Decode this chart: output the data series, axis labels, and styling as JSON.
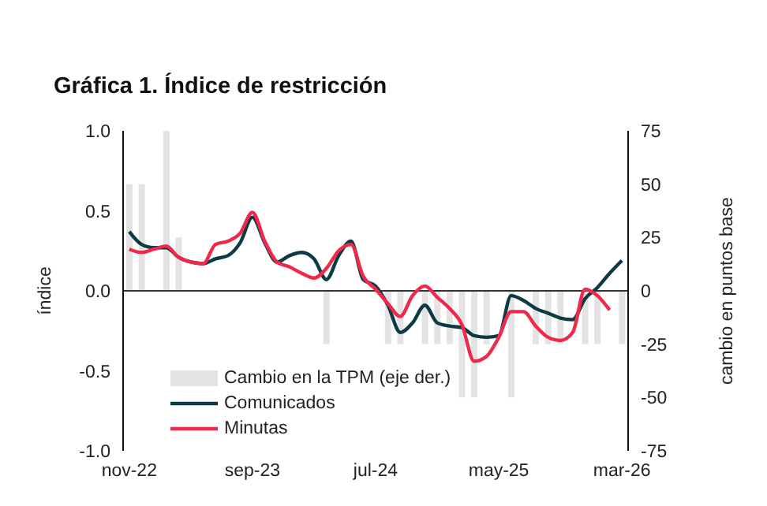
{
  "chart_data": {
    "type": "line",
    "title": "Gráfica 1. Índice de restricción",
    "ylabel": "índice",
    "y2label": "cambio en puntos base",
    "categories": [
      "nov-22",
      null,
      null,
      null,
      null,
      null,
      null,
      null,
      null,
      null,
      "sep-23",
      null,
      null,
      null,
      null,
      null,
      null,
      null,
      null,
      null,
      "jul-24",
      null,
      null,
      null,
      null,
      null,
      null,
      null,
      null,
      null,
      "may-25",
      null,
      null,
      null,
      null,
      null,
      null,
      null,
      null,
      null,
      "mar-26"
    ],
    "series": [
      {
        "name": "Cambio en la TPM (eje der.)",
        "type": "bar",
        "axis": "y2",
        "color": "#e3e3e3",
        "values": [
          50,
          50,
          null,
          75,
          25,
          null,
          null,
          null,
          null,
          null,
          null,
          null,
          null,
          null,
          null,
          null,
          -25,
          null,
          null,
          null,
          null,
          -25,
          -25,
          null,
          -25,
          -25,
          -25,
          -50,
          -50,
          -25,
          null,
          -50,
          null,
          -25,
          -25,
          -25,
          null,
          -25,
          -25,
          null,
          -25
        ]
      },
      {
        "name": "Comunicados",
        "color": "#0d3b45",
        "values": [
          0.37,
          0.29,
          0.27,
          0.27,
          0.21,
          0.18,
          0.17,
          0.2,
          0.22,
          0.3,
          0.46,
          0.3,
          0.18,
          0.22,
          0.24,
          0.2,
          0.07,
          0.22,
          0.31,
          0.07,
          0.03,
          -0.09,
          -0.26,
          -0.2,
          -0.09,
          -0.2,
          -0.22,
          -0.23,
          -0.28,
          -0.29,
          -0.28,
          -0.03,
          -0.06,
          -0.11,
          -0.14,
          -0.17,
          -0.18,
          -0.05,
          0.02,
          0.11,
          0.19
        ]
      },
      {
        "name": "Minutas",
        "color": "#f0284a",
        "values": [
          0.26,
          0.24,
          0.26,
          0.28,
          0.21,
          0.18,
          0.17,
          0.29,
          0.31,
          0.36,
          0.49,
          0.31,
          0.18,
          0.15,
          0.11,
          0.08,
          0.14,
          0.25,
          0.29,
          0.09,
          0.01,
          -0.08,
          -0.16,
          -0.03,
          0.03,
          -0.04,
          -0.11,
          -0.21,
          -0.44,
          -0.41,
          -0.29,
          -0.13,
          -0.13,
          -0.22,
          -0.29,
          -0.31,
          -0.26,
          0.01,
          -0.03,
          -0.12,
          null
        ]
      }
    ],
    "ylim": [
      -1,
      1
    ],
    "yticks": [
      {
        "value": 1,
        "label": "1.0"
      },
      {
        "value": 0.5,
        "label": "0.5"
      },
      {
        "value": 0,
        "label": "0.0"
      },
      {
        "value": -0.5,
        "label": "-0.5"
      },
      {
        "value": -1,
        "label": "-1.0"
      }
    ],
    "y2lim": [
      -75,
      75
    ],
    "y2ticks": [
      75,
      50,
      25,
      0,
      -25,
      -50,
      -75
    ],
    "ref_lines": [
      {
        "axis": "y",
        "value": 0,
        "color": "#333333"
      }
    ],
    "grid": false,
    "legend": "bottom left",
    "marker": "none",
    "line_style": "solid"
  }
}
